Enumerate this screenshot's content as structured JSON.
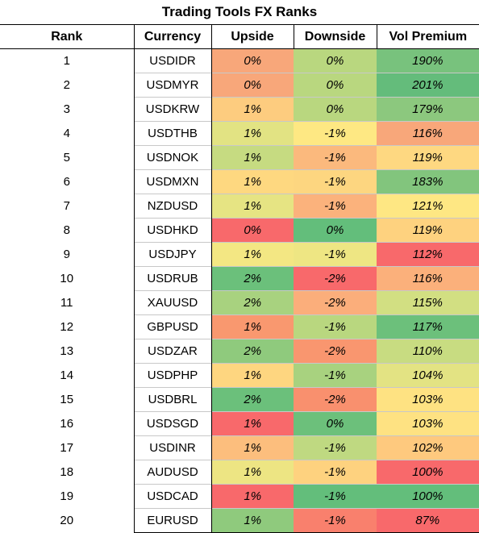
{
  "title": "Trading Tools FX Ranks",
  "headers": {
    "rank": "Rank",
    "currency": "Currency",
    "upside": "Upside",
    "downside": "Downside",
    "vol_premium": "Vol Premium"
  },
  "rows": [
    {
      "rank": "1",
      "currency": "USDIDR",
      "upside": "0%",
      "upside_color": "#f8a77a",
      "downside": "0%",
      "downside_color": "#b9d77f",
      "vol": "190%",
      "vol_color": "#78c27d"
    },
    {
      "rank": "2",
      "currency": "USDMYR",
      "upside": "0%",
      "upside_color": "#f8a77a",
      "downside": "0%",
      "downside_color": "#b9d77f",
      "vol": "201%",
      "vol_color": "#64bc7b"
    },
    {
      "rank": "3",
      "currency": "USDKRW",
      "upside": "1%",
      "upside_color": "#fdcc7f",
      "downside": "0%",
      "downside_color": "#b9d77f",
      "vol": "179%",
      "vol_color": "#8cc87e"
    },
    {
      "rank": "4",
      "currency": "USDTHB",
      "upside": "1%",
      "upside_color": "#e2e383",
      "downside": "-1%",
      "downside_color": "#fee883",
      "vol": "116%",
      "vol_color": "#f8a77a"
    },
    {
      "rank": "5",
      "currency": "USDNOK",
      "upside": "1%",
      "upside_color": "#c6db81",
      "downside": "-1%",
      "downside_color": "#fbb97d",
      "vol": "119%",
      "vol_color": "#fed881"
    },
    {
      "rank": "6",
      "currency": "USDMXN",
      "upside": "1%",
      "upside_color": "#fed880",
      "downside": "-1%",
      "downside_color": "#fdd680",
      "vol": "183%",
      "vol_color": "#82c57d"
    },
    {
      "rank": "7",
      "currency": "NZDUSD",
      "upside": "1%",
      "upside_color": "#e6e483",
      "downside": "-1%",
      "downside_color": "#fbb27c",
      "vol": "121%",
      "vol_color": "#fee783"
    },
    {
      "rank": "8",
      "currency": "USDHKD",
      "upside": "0%",
      "upside_color": "#f8696b",
      "downside": "0%",
      "downside_color": "#63be7b",
      "vol": "119%",
      "vol_color": "#fed27f"
    },
    {
      "rank": "9",
      "currency": "USDJPY",
      "upside": "1%",
      "upside_color": "#f3e783",
      "downside": "-1%",
      "downside_color": "#eee683",
      "vol": "112%",
      "vol_color": "#f8696b"
    },
    {
      "rank": "10",
      "currency": "USDRUB",
      "upside": "2%",
      "upside_color": "#6bc07b",
      "downside": "-2%",
      "downside_color": "#f8696b",
      "vol": "116%",
      "vol_color": "#fbb07b"
    },
    {
      "rank": "11",
      "currency": "XAUUSD",
      "upside": "2%",
      "upside_color": "#a8d27f",
      "downside": "-2%",
      "downside_color": "#fbae7b",
      "vol": "115%",
      "vol_color": "#d2df82"
    },
    {
      "rank": "12",
      "currency": "GBPUSD",
      "upside": "1%",
      "upside_color": "#f9986f",
      "downside": "-1%",
      "downside_color": "#b9d77f",
      "vol": "117%",
      "vol_color": "#6cc07b"
    },
    {
      "rank": "13",
      "currency": "USDZAR",
      "upside": "2%",
      "upside_color": "#8fca7d",
      "downside": "-2%",
      "downside_color": "#f9966f",
      "vol": "110%",
      "vol_color": "#c8dc81"
    },
    {
      "rank": "14",
      "currency": "USDPHP",
      "upside": "1%",
      "upside_color": "#fed680",
      "downside": "-1%",
      "downside_color": "#a8d27f",
      "vol": "104%",
      "vol_color": "#e3e383"
    },
    {
      "rank": "15",
      "currency": "USDBRL",
      "upside": "2%",
      "upside_color": "#6bc07b",
      "downside": "-2%",
      "downside_color": "#f9906e",
      "vol": "103%",
      "vol_color": "#fee282"
    },
    {
      "rank": "16",
      "currency": "USDSGD",
      "upside": "1%",
      "upside_color": "#f8696b",
      "downside": "0%",
      "downside_color": "#6cc07b",
      "vol": "103%",
      "vol_color": "#fee282"
    },
    {
      "rank": "17",
      "currency": "USDINR",
      "upside": "1%",
      "upside_color": "#fcbe7d",
      "downside": "-1%",
      "downside_color": "#bfd981",
      "vol": "102%",
      "vol_color": "#fec97e"
    },
    {
      "rank": "18",
      "currency": "AUDUSD",
      "upside": "1%",
      "upside_color": "#ede583",
      "downside": "-1%",
      "downside_color": "#fed27f",
      "vol": "100%",
      "vol_color": "#f8696b"
    },
    {
      "rank": "19",
      "currency": "USDCAD",
      "upside": "1%",
      "upside_color": "#f8696b",
      "downside": "-1%",
      "downside_color": "#63be7b",
      "vol": "100%",
      "vol_color": "#63be7b"
    },
    {
      "rank": "20",
      "currency": "EURUSD",
      "upside": "1%",
      "upside_color": "#8fca7d",
      "downside": "-1%",
      "downside_color": "#f9806d",
      "vol": "87%",
      "vol_color": "#f8696b"
    }
  ]
}
